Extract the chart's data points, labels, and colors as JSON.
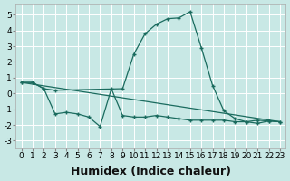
{
  "xlabel": "Humidex (Indice chaleur)",
  "background_color": "#c8e8e5",
  "line_color": "#1a6b5e",
  "grid_color": "#ffffff",
  "xlim": [
    -0.5,
    23.5
  ],
  "ylim": [
    -3.5,
    5.7
  ],
  "yticks": [
    -3,
    -2,
    -1,
    0,
    1,
    2,
    3,
    4,
    5
  ],
  "xticks": [
    0,
    1,
    2,
    3,
    4,
    5,
    6,
    7,
    8,
    9,
    10,
    11,
    12,
    13,
    14,
    15,
    16,
    17,
    18,
    19,
    20,
    21,
    22,
    23
  ],
  "series1_x": [
    0,
    1,
    2,
    3,
    9,
    10,
    11,
    12,
    13,
    14,
    15,
    16,
    17,
    18,
    19,
    20,
    21,
    22,
    23
  ],
  "series1_y": [
    0.7,
    0.7,
    0.3,
    0.2,
    0.3,
    2.5,
    3.8,
    4.4,
    4.75,
    4.8,
    5.2,
    2.9,
    0.5,
    -1.1,
    -1.6,
    -1.8,
    -1.7,
    -1.75,
    -1.8
  ],
  "series2_x": [
    0,
    1,
    2,
    3,
    4,
    5,
    6,
    7,
    8,
    9,
    10,
    11,
    12,
    13,
    14,
    15,
    16,
    17,
    18,
    19,
    20,
    21,
    22,
    23
  ],
  "series2_y": [
    0.7,
    0.7,
    0.3,
    -1.3,
    -1.2,
    -1.3,
    -1.5,
    -2.1,
    0.3,
    -1.4,
    -1.5,
    -1.5,
    -1.4,
    -1.5,
    -1.6,
    -1.7,
    -1.7,
    -1.7,
    -1.7,
    -1.8,
    -1.8,
    -1.9,
    -1.75,
    -1.8
  ],
  "series3_x": [
    0,
    23
  ],
  "series3_y": [
    0.7,
    -1.8
  ],
  "fontsize_label": 9,
  "tick_fontsize": 6.5
}
